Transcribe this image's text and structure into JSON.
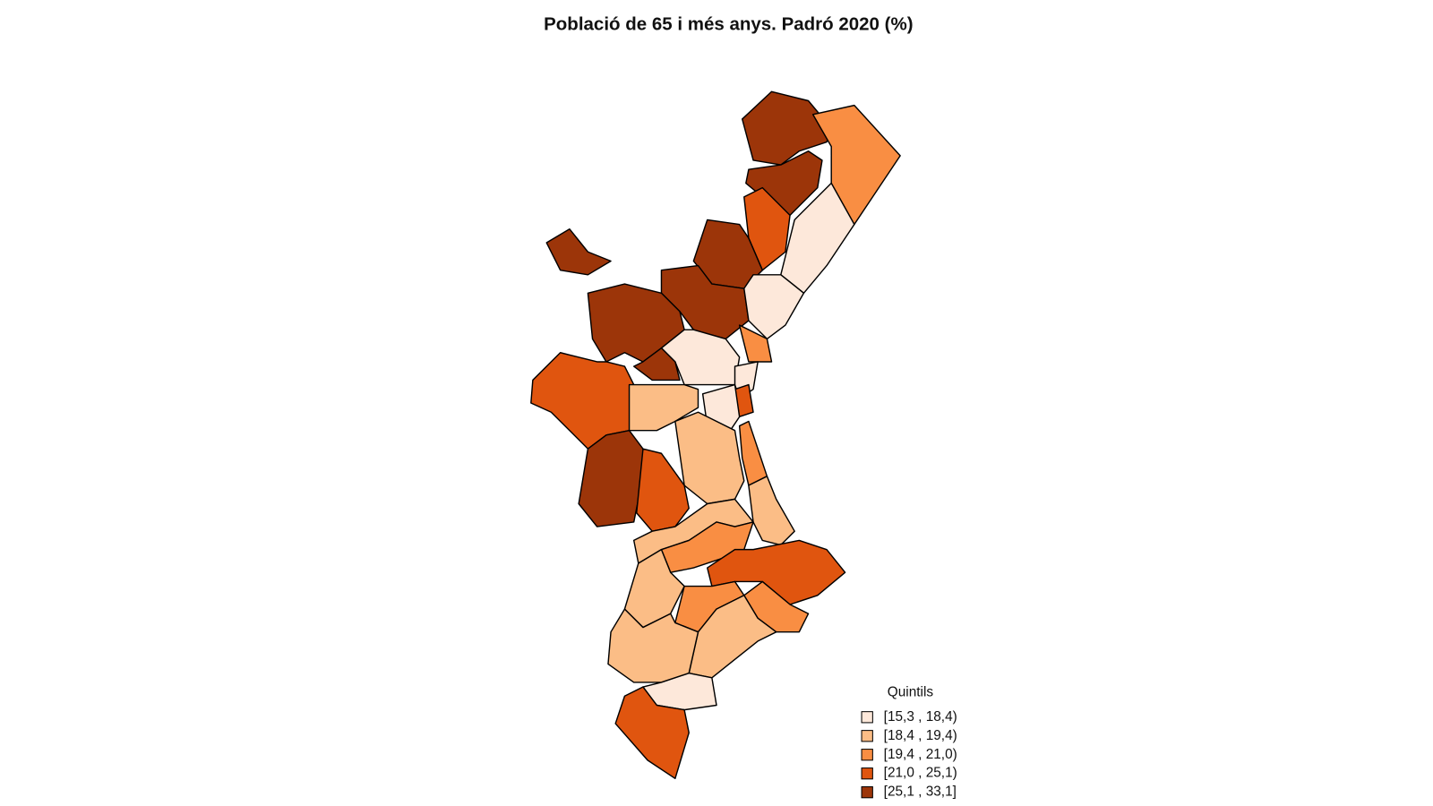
{
  "title": "Població de 65 i més anys. Padró 2020 (%)",
  "legend": {
    "title": "Quintils",
    "items": [
      {
        "label": "[15,3 , 18,4)",
        "color": "#fde8da"
      },
      {
        "label": "[18,4 , 19,4)",
        "color": "#fbbd86"
      },
      {
        "label": "[19,4 , 21,0)",
        "color": "#f98e43"
      },
      {
        "label": "[21,0 , 25,1)",
        "color": "#e0550f"
      },
      {
        "label": "[25,1 , 33,1]",
        "color": "#9c3509"
      }
    ]
  }
}
